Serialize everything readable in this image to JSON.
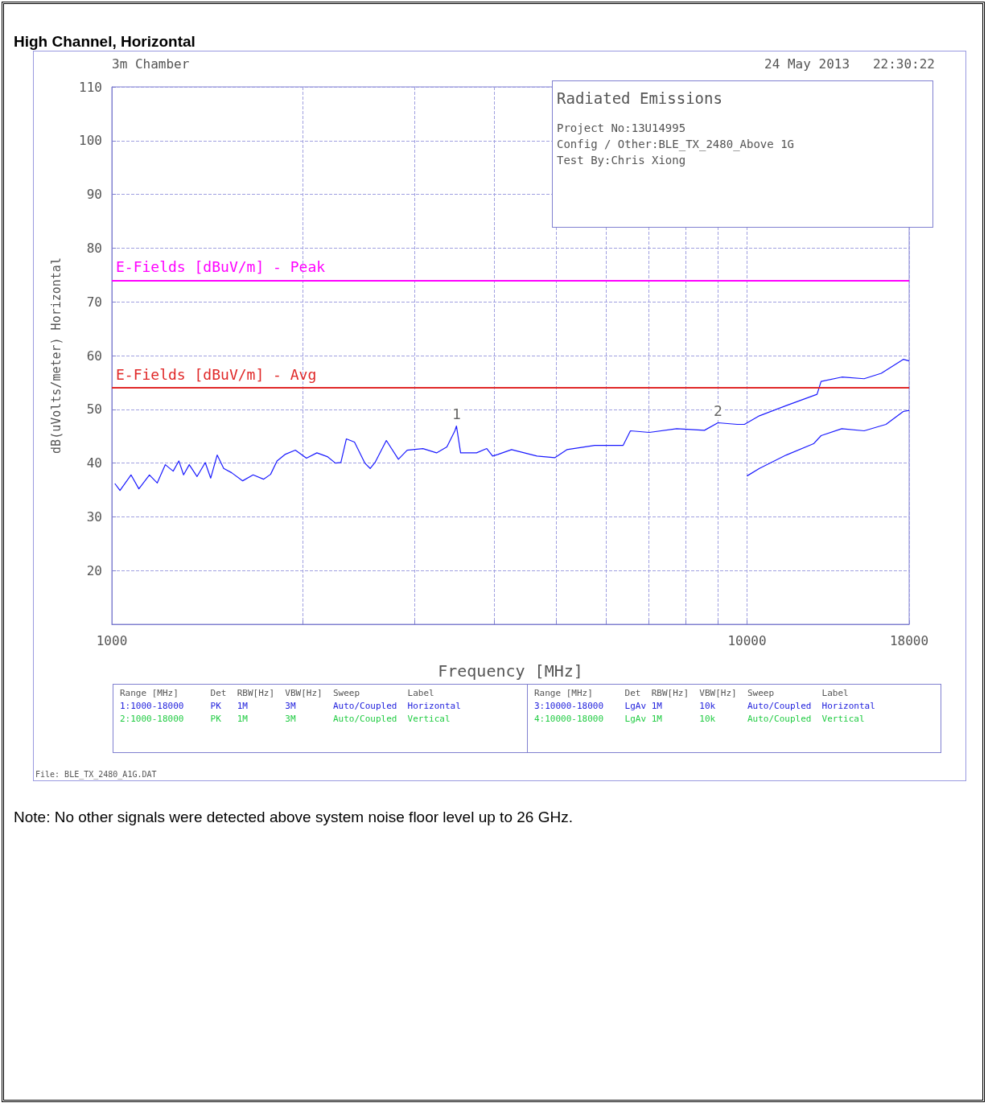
{
  "chart_data": {
    "type": "line",
    "title": "High Channel, Horizontal",
    "xlabel": "Frequency [MHz]",
    "ylabel": "dB(uVolts/meter) Horizontal",
    "xlim": [
      1000,
      18000
    ],
    "xticks": [
      1000,
      {
        "value": 2000,
        "label": null
      },
      {
        "value": 3000,
        "label": null
      },
      {
        "value": 4000,
        "label": null
      },
      {
        "value": 5000,
        "label": null
      },
      {
        "value": 6000,
        "label": null
      },
      {
        "value": 7000,
        "label": null
      },
      {
        "value": 8000,
        "label": null
      },
      {
        "value": 9000,
        "label": null
      },
      10000,
      18000
    ],
    "ylim": [
      10,
      110
    ],
    "yticks": [
      {
        "value": 10,
        "label": null
      },
      20,
      30,
      40,
      50,
      60,
      70,
      80,
      90,
      100,
      110
    ],
    "log": "x",
    "grid": true,
    "series": [
      {
        "color": "#1a1aff",
        "x": [
          1011,
          1030,
          1072,
          1103,
          1146,
          1179,
          1214,
          1249,
          1275,
          1297,
          1324,
          1362,
          1403,
          1431,
          1465,
          1500,
          1544,
          1607,
          1669,
          1733,
          1778,
          1820,
          1873,
          1945,
          2025,
          2103,
          2184,
          2249,
          2294,
          2340,
          2410,
          2502,
          2551,
          2596,
          2705,
          2826,
          2917,
          3089,
          3245,
          3369,
          3468,
          3488,
          3541,
          3752,
          3893,
          3976,
          4053,
          4259,
          4670,
          4981,
          5204,
          5757,
          6383,
          6553,
          7018,
          7749,
          8570,
          9001,
          9652,
          9908,
          10460,
          11530,
          12890,
          13080,
          14100,
          15290,
          16270,
          17620,
          18000
        ],
        "values": [
          36.2,
          34.9,
          37.8,
          35.2,
          37.8,
          36.3,
          39.7,
          38.5,
          40.4,
          37.8,
          39.7,
          37.5,
          40.1,
          37.2,
          41.5,
          39.0,
          38.2,
          36.7,
          37.8,
          37.0,
          37.9,
          40.4,
          41.6,
          42.4,
          40.9,
          41.9,
          41.2,
          40.0,
          40.1,
          44.5,
          43.9,
          40.0,
          39.0,
          40.1,
          44.2,
          40.7,
          42.4,
          42.7,
          41.9,
          43.0,
          46.0,
          46.9,
          41.9,
          41.9,
          42.7,
          41.3,
          41.6,
          42.5,
          41.3,
          41.0,
          42.5,
          43.3,
          43.3,
          46.0,
          45.7,
          46.4,
          46.1,
          47.5,
          47.2,
          47.2,
          48.8,
          50.7,
          52.8,
          55.2,
          56.0,
          55.7,
          56.7,
          59.3,
          59.0
        ]
      },
      {
        "color": "#1a1aff",
        "x": [
          10000,
          10460,
          11530,
          12730,
          13080,
          14100,
          15290,
          16550,
          17620,
          18000
        ],
        "values": [
          37.6,
          39.0,
          41.5,
          43.6,
          45.1,
          46.4,
          46.0,
          47.2,
          49.6,
          49.8
        ]
      }
    ],
    "ref_lines": [
      {
        "axis": "y",
        "value": 74,
        "label": "E-Fields [dBuV/m] - Peak",
        "color": "#ff00ff"
      },
      {
        "axis": "y",
        "value": 54,
        "label": "E-Fields [dBuV/m] - Avg",
        "color": "#e02828"
      }
    ],
    "annotations": [
      "3m Chamber",
      "24 May 2013   22:30:22",
      "Radiated Emissions",
      "Project No:13U14995",
      "Config / Other:BLE_TX_2480_Above 1G",
      "Test By:Chris Xiong",
      "Range [MHz]      Det  RBW[Hz]  VBW[Hz]  Sweep         Label",
      "1:1000-18000     PK   1M       3M       Auto/Coupled  Horizontal",
      "2:1000-18000     PK   1M       3M       Auto/Coupled  Vertical",
      "Range [MHz]      Det  RBW[Hz]  VBW[Hz]  Sweep         Label",
      "3:10000-18000    LgAv 1M       10k      Auto/Coupled  Horizontal",
      "4:10000-18000    LgAv 1M       10k      Auto/Coupled  Vertical",
      "File: BLE_TX_2480_A1G.DAT",
      "Note: No other signals were detected above system noise floor level up to 26 GHz.",
      {
        "text": "1",
        "x": 3488,
        "y": 46.9
      },
      {
        "text": "2",
        "x": 9001,
        "y": 47.5
      }
    ]
  }
}
